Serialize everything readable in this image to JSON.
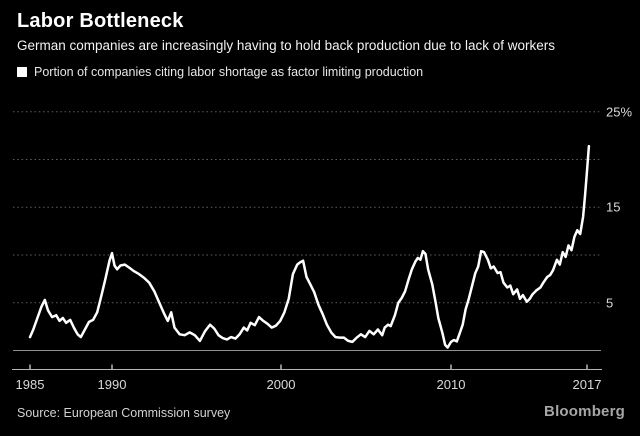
{
  "header": {
    "title": "Labor Bottleneck",
    "subtitle": "German companies are increasingly having to hold back production due to lack of workers"
  },
  "legend": {
    "swatch_color": "#ffffff",
    "label": "Portion of companies citing labor shortage as factor limiting production"
  },
  "footer": {
    "source": "Source: European Commission survey",
    "brand": "Bloomberg"
  },
  "colors": {
    "background": "#000000",
    "line": "#ffffff",
    "gridline": "#5f5f5f",
    "zero_line": "#8f8f8f",
    "axis_line": "#b5b5b5",
    "tick_label": "#d9d9d9"
  },
  "chart_data": {
    "type": "line",
    "title": "Labor Bottleneck",
    "subtitle": "German companies are increasingly having to hold back production due to lack of workers",
    "series_name": "Portion of companies citing labor shortage as factor limiting production",
    "xlabel": "",
    "ylabel": "%",
    "xlim": [
      1985,
      2017.6
    ],
    "ylim": [
      0,
      26.5
    ],
    "grid": "dotted-horizontal",
    "legend_position": "top-left",
    "x_ticks": [
      {
        "year": 1985,
        "label": "1985"
      },
      {
        "year": 1990,
        "label": "1990"
      },
      {
        "year": 2000,
        "label": "2000"
      },
      {
        "year": 2010,
        "label": "2010"
      },
      {
        "year": 2017,
        "label": "2017"
      }
    ],
    "y_gridlines": [
      5,
      10,
      15,
      20,
      25
    ],
    "y_tick_labels": [
      {
        "value": 25,
        "label": "25%"
      },
      {
        "value": 15,
        "label": "15"
      },
      {
        "value": 5,
        "label": "5"
      }
    ],
    "points": [
      [
        1985.0,
        1.4
      ],
      [
        1985.2,
        2.2
      ],
      [
        1985.45,
        3.4
      ],
      [
        1985.7,
        4.6
      ],
      [
        1985.9,
        5.3
      ],
      [
        1986.1,
        4.2
      ],
      [
        1986.35,
        3.5
      ],
      [
        1986.6,
        3.7
      ],
      [
        1986.8,
        3.1
      ],
      [
        1987.0,
        3.4
      ],
      [
        1987.2,
        2.9
      ],
      [
        1987.45,
        3.2
      ],
      [
        1987.7,
        2.3
      ],
      [
        1987.9,
        1.7
      ],
      [
        1988.1,
        1.4
      ],
      [
        1988.35,
        2.2
      ],
      [
        1988.6,
        3.0
      ],
      [
        1988.85,
        3.2
      ],
      [
        1989.1,
        4.0
      ],
      [
        1989.35,
        5.7
      ],
      [
        1989.6,
        7.5
      ],
      [
        1989.85,
        9.4
      ],
      [
        1990.0,
        10.2
      ],
      [
        1990.15,
        8.9
      ],
      [
        1990.3,
        8.5
      ],
      [
        1990.5,
        8.9
      ],
      [
        1990.75,
        9.0
      ],
      [
        1991.0,
        8.7
      ],
      [
        1991.3,
        8.3
      ],
      [
        1991.6,
        8.0
      ],
      [
        1991.9,
        7.6
      ],
      [
        1992.2,
        7.1
      ],
      [
        1992.5,
        6.2
      ],
      [
        1992.8,
        5.0
      ],
      [
        1993.1,
        3.8
      ],
      [
        1993.3,
        3.1
      ],
      [
        1993.5,
        4.0
      ],
      [
        1993.7,
        2.4
      ],
      [
        1994.0,
        1.7
      ],
      [
        1994.3,
        1.6
      ],
      [
        1994.6,
        1.9
      ],
      [
        1994.9,
        1.6
      ],
      [
        1995.2,
        1.0
      ],
      [
        1995.5,
        2.0
      ],
      [
        1995.8,
        2.7
      ],
      [
        1996.05,
        2.3
      ],
      [
        1996.3,
        1.6
      ],
      [
        1996.55,
        1.3
      ],
      [
        1996.8,
        1.15
      ],
      [
        1997.05,
        1.4
      ],
      [
        1997.3,
        1.25
      ],
      [
        1997.55,
        1.7
      ],
      [
        1997.8,
        2.4
      ],
      [
        1998.0,
        2.1
      ],
      [
        1998.2,
        2.9
      ],
      [
        1998.45,
        2.65
      ],
      [
        1998.7,
        3.5
      ],
      [
        1998.95,
        3.1
      ],
      [
        1999.2,
        2.8
      ],
      [
        1999.45,
        2.4
      ],
      [
        1999.7,
        2.6
      ],
      [
        1999.95,
        3.1
      ],
      [
        2000.2,
        4.0
      ],
      [
        2000.45,
        5.4
      ],
      [
        2000.7,
        8.0
      ],
      [
        2000.95,
        9.0
      ],
      [
        2001.1,
        9.2
      ],
      [
        2001.3,
        9.4
      ],
      [
        2001.5,
        7.7
      ],
      [
        2001.7,
        7.0
      ],
      [
        2001.95,
        6.1
      ],
      [
        2002.2,
        4.8
      ],
      [
        2002.45,
        3.8
      ],
      [
        2002.7,
        2.7
      ],
      [
        2002.95,
        1.9
      ],
      [
        2003.2,
        1.4
      ],
      [
        2003.45,
        1.35
      ],
      [
        2003.7,
        1.35
      ],
      [
        2003.95,
        1.0
      ],
      [
        2004.2,
        0.9
      ],
      [
        2004.45,
        1.35
      ],
      [
        2004.7,
        1.7
      ],
      [
        2004.95,
        1.4
      ],
      [
        2005.2,
        2.05
      ],
      [
        2005.45,
        1.7
      ],
      [
        2005.7,
        2.2
      ],
      [
        2005.95,
        1.6
      ],
      [
        2006.1,
        2.4
      ],
      [
        2006.3,
        2.7
      ],
      [
        2006.45,
        2.55
      ],
      [
        2006.7,
        3.7
      ],
      [
        2006.9,
        5.0
      ],
      [
        2007.1,
        5.5
      ],
      [
        2007.3,
        6.2
      ],
      [
        2007.5,
        7.4
      ],
      [
        2007.7,
        8.5
      ],
      [
        2007.9,
        9.3
      ],
      [
        2008.05,
        9.7
      ],
      [
        2008.2,
        9.5
      ],
      [
        2008.35,
        10.4
      ],
      [
        2008.5,
        10.1
      ],
      [
        2008.65,
        8.5
      ],
      [
        2008.9,
        6.9
      ],
      [
        2009.1,
        5.0
      ],
      [
        2009.25,
        3.4
      ],
      [
        2009.5,
        1.8
      ],
      [
        2009.65,
        0.6
      ],
      [
        2009.8,
        0.3
      ],
      [
        2010.0,
        0.9
      ],
      [
        2010.15,
        1.1
      ],
      [
        2010.3,
        0.95
      ],
      [
        2010.45,
        1.8
      ],
      [
        2010.6,
        2.7
      ],
      [
        2010.75,
        4.3
      ],
      [
        2010.9,
        5.3
      ],
      [
        2011.1,
        6.9
      ],
      [
        2011.25,
        8.1
      ],
      [
        2011.4,
        8.8
      ],
      [
        2011.55,
        10.4
      ],
      [
        2011.7,
        10.3
      ],
      [
        2011.9,
        9.5
      ],
      [
        2012.05,
        8.6
      ],
      [
        2012.2,
        8.8
      ],
      [
        2012.4,
        8.1
      ],
      [
        2012.55,
        8.2
      ],
      [
        2012.7,
        7.1
      ],
      [
        2012.9,
        6.6
      ],
      [
        2013.05,
        6.8
      ],
      [
        2013.2,
        5.9
      ],
      [
        2013.4,
        6.4
      ],
      [
        2013.55,
        5.4
      ],
      [
        2013.7,
        5.8
      ],
      [
        2013.9,
        5.1
      ],
      [
        2014.05,
        5.4
      ],
      [
        2014.2,
        5.9
      ],
      [
        2014.4,
        6.3
      ],
      [
        2014.6,
        6.6
      ],
      [
        2014.75,
        7.1
      ],
      [
        2014.95,
        7.7
      ],
      [
        2015.1,
        7.9
      ],
      [
        2015.25,
        8.4
      ],
      [
        2015.45,
        9.5
      ],
      [
        2015.6,
        9.0
      ],
      [
        2015.75,
        10.3
      ],
      [
        2015.9,
        9.8
      ],
      [
        2016.05,
        11.0
      ],
      [
        2016.2,
        10.5
      ],
      [
        2016.35,
        11.9
      ],
      [
        2016.5,
        12.6
      ],
      [
        2016.65,
        12.2
      ],
      [
        2016.8,
        14.0
      ],
      [
        2016.9,
        16.3
      ],
      [
        2017.0,
        18.8
      ],
      [
        2017.1,
        21.4
      ]
    ]
  }
}
